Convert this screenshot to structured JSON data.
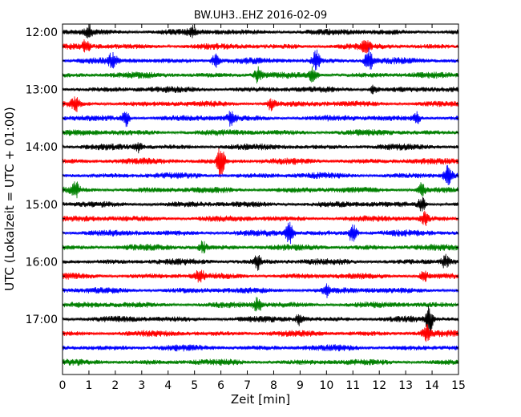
{
  "chart_data": {
    "type": "line",
    "title": "BW.UH3..EHZ 2016-02-09",
    "xlabel": "Zeit  [min]",
    "ylabel": "UTC (Lokalzeit = UTC + 01:00)",
    "xlim": [
      0,
      15
    ],
    "x_ticks": [
      "0",
      "1",
      "2",
      "3",
      "4",
      "5",
      "6",
      "7",
      "8",
      "9",
      "10",
      "11",
      "12",
      "13",
      "14",
      "15"
    ],
    "y_ticks": [
      "12:00",
      "13:00",
      "14:00",
      "15:00",
      "16:00",
      "17:00"
    ],
    "start_time": "12:00",
    "trace_interval_min": 15,
    "trace_count": 24,
    "color_cycle": [
      "#000000",
      "#ff0000",
      "#0000ff",
      "#008000"
    ],
    "grid": false,
    "events": [
      {
        "trace": 0,
        "minute": 1.0,
        "amp": 0.5
      },
      {
        "trace": 0,
        "minute": 4.9,
        "amp": 0.45
      },
      {
        "trace": 1,
        "minute": 0.9,
        "amp": 0.55
      },
      {
        "trace": 1,
        "minute": 11.5,
        "amp": 0.5
      },
      {
        "trace": 2,
        "minute": 1.9,
        "amp": 0.65
      },
      {
        "trace": 2,
        "minute": 5.8,
        "amp": 0.55
      },
      {
        "trace": 2,
        "minute": 9.6,
        "amp": 0.85
      },
      {
        "trace": 2,
        "minute": 11.6,
        "amp": 1.0
      },
      {
        "trace": 3,
        "minute": 7.4,
        "amp": 0.6
      },
      {
        "trace": 3,
        "minute": 9.5,
        "amp": 0.7
      },
      {
        "trace": 4,
        "minute": 11.8,
        "amp": 0.4
      },
      {
        "trace": 5,
        "minute": 0.5,
        "amp": 0.6
      },
      {
        "trace": 5,
        "minute": 7.9,
        "amp": 0.5
      },
      {
        "trace": 6,
        "minute": 2.4,
        "amp": 0.7
      },
      {
        "trace": 6,
        "minute": 6.4,
        "amp": 0.75
      },
      {
        "trace": 6,
        "minute": 13.4,
        "amp": 0.6
      },
      {
        "trace": 8,
        "minute": 2.9,
        "amp": 0.45
      },
      {
        "trace": 9,
        "minute": 6.0,
        "amp": 1.4
      },
      {
        "trace": 10,
        "minute": 14.6,
        "amp": 0.8
      },
      {
        "trace": 11,
        "minute": 0.5,
        "amp": 0.6
      },
      {
        "trace": 11,
        "minute": 13.6,
        "amp": 0.55
      },
      {
        "trace": 12,
        "minute": 13.6,
        "amp": 0.7
      },
      {
        "trace": 13,
        "minute": 13.7,
        "amp": 0.6
      },
      {
        "trace": 14,
        "minute": 8.6,
        "amp": 0.9
      },
      {
        "trace": 14,
        "minute": 11.0,
        "amp": 0.95
      },
      {
        "trace": 15,
        "minute": 5.3,
        "amp": 0.5
      },
      {
        "trace": 16,
        "minute": 7.4,
        "amp": 0.6
      },
      {
        "trace": 16,
        "minute": 14.5,
        "amp": 0.5
      },
      {
        "trace": 17,
        "minute": 5.2,
        "amp": 0.6
      },
      {
        "trace": 17,
        "minute": 13.7,
        "amp": 0.5
      },
      {
        "trace": 18,
        "minute": 10.0,
        "amp": 0.5
      },
      {
        "trace": 19,
        "minute": 7.4,
        "amp": 0.7
      },
      {
        "trace": 20,
        "minute": 13.9,
        "amp": 1.1
      },
      {
        "trace": 20,
        "minute": 9.0,
        "amp": 0.5
      },
      {
        "trace": 21,
        "minute": 13.8,
        "amp": 0.6
      }
    ]
  }
}
